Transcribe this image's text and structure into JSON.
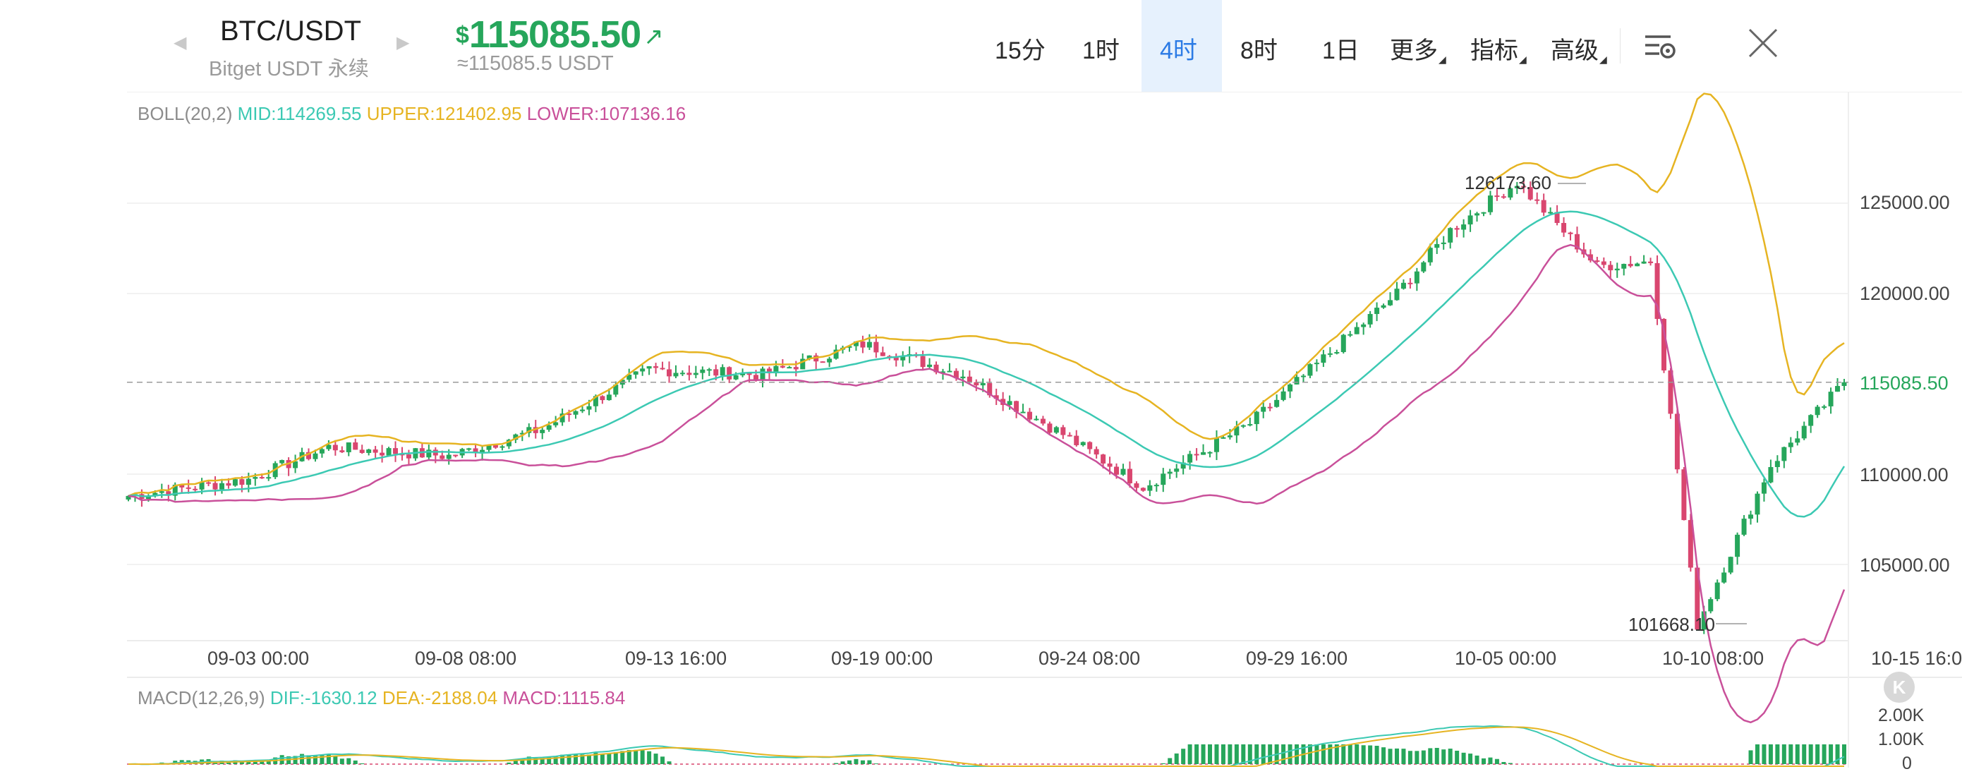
{
  "header": {
    "pair": "BTC/USDT",
    "market": "Bitget USDT 永续",
    "price_currency": "$",
    "price": "115085.50",
    "price_arrow": "↗",
    "price_converted": "≈115085.5 USDT",
    "timeframes": [
      {
        "label": "15分",
        "active": false
      },
      {
        "label": "1时",
        "active": false
      },
      {
        "label": "4时",
        "active": true
      },
      {
        "label": "8时",
        "active": false
      },
      {
        "label": "1日",
        "active": false
      }
    ],
    "menus": [
      "更多",
      "指标",
      "高级"
    ],
    "settings_icon": "chart-settings-icon",
    "close_icon": "close-icon"
  },
  "boll": {
    "name": "BOLL(20,2)",
    "mid": "MID:114269.55",
    "upper": "UPPER:121402.95",
    "lower": "LOWER:107136.16"
  },
  "macd": {
    "name": "MACD(12,26,9)",
    "dif": "DIF:-1630.12",
    "dea": "DEA:-2188.04",
    "macd": "MACD:1115.84",
    "axis": [
      "2.00K",
      "1.00K",
      "0"
    ]
  },
  "price_axis": [
    "125000.00",
    "120000.00",
    "115085.50",
    "110000.00",
    "105000.00"
  ],
  "current_price_label": "115085.50",
  "time_axis": [
    "09-03 00:00",
    "09-08 08:00",
    "09-13 16:00",
    "09-19 00:00",
    "09-24 08:00",
    "09-29 16:00",
    "10-05 00:00",
    "10-10 08:00",
    "10-15 16:00"
  ],
  "high_label": "126173.60",
  "low_label": "101668.10",
  "k_badge": "K",
  "colors": {
    "up": "#26a65b",
    "down": "#d9466f",
    "mid": "#3cc9b3",
    "upper": "#e6b422",
    "lower": "#c9509a",
    "accent": "#2c7be5"
  },
  "chart_data": {
    "type": "candlestick",
    "ylim": [
      101000,
      128000
    ],
    "price_path_keypoints": [
      {
        "t": "09-01",
        "v": 108800
      },
      {
        "t": "09-03 00:00",
        "v": 109700
      },
      {
        "t": "09-05",
        "v": 111500
      },
      {
        "t": "09-08 08:00",
        "v": 111000
      },
      {
        "t": "09-10",
        "v": 112500
      },
      {
        "t": "09-13 16:00",
        "v": 115800
      },
      {
        "t": "09-16",
        "v": 115500
      },
      {
        "t": "09-19 00:00",
        "v": 117200
      },
      {
        "t": "09-22",
        "v": 115500
      },
      {
        "t": "09-24 08:00",
        "v": 112200
      },
      {
        "t": "09-26",
        "v": 109300
      },
      {
        "t": "09-29 16:00",
        "v": 112800
      },
      {
        "t": "10-03",
        "v": 120000
      },
      {
        "t": "10-05 00:00",
        "v": 123500
      },
      {
        "t": "10-06",
        "v": 126173.6
      },
      {
        "t": "10-08",
        "v": 121500
      },
      {
        "t": "10-10 08:00",
        "v": 121800
      },
      {
        "t": "10-10 21:00",
        "v": 101668.1
      },
      {
        "t": "10-12",
        "v": 110500
      },
      {
        "t": "10-14",
        "v": 115085.5
      }
    ],
    "high": 126173.6,
    "low": 101668.1,
    "last": 115085.5
  }
}
